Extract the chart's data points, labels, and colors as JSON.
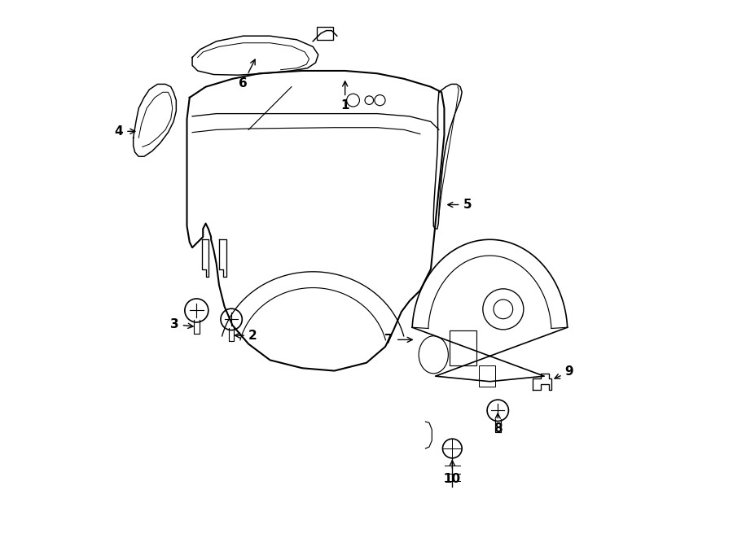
{
  "background_color": "#ffffff",
  "line_color": "#000000",
  "lw": 1.2
}
